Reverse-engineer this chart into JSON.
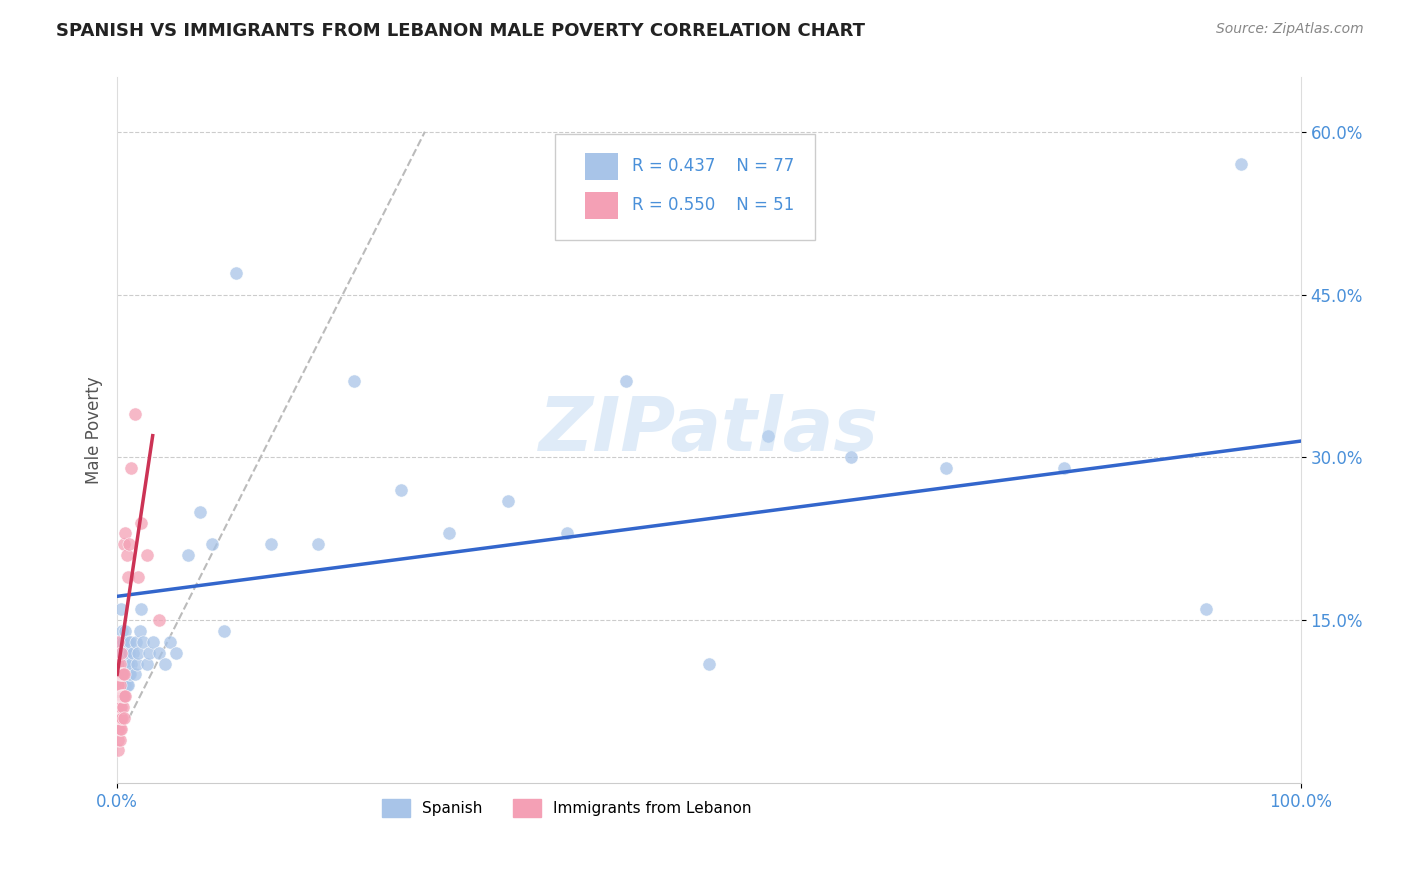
{
  "title": "SPANISH VS IMMIGRANTS FROM LEBANON MALE POVERTY CORRELATION CHART",
  "source": "Source: ZipAtlas.com",
  "ylabel": "Male Poverty",
  "background_color": "#ffffff",
  "watermark": "ZIPatlas",
  "legend_R_spanish": "R = 0.437",
  "legend_N_spanish": "N = 77",
  "legend_R_lebanon": "R = 0.550",
  "legend_N_lebanon": "N = 51",
  "spanish_color": "#a8c4e8",
  "lebanon_color": "#f4a0b5",
  "spanish_line_color": "#3366cc",
  "lebanon_line_color": "#cc3355",
  "dashed_line_color": "#bbbbbb",
  "grid_color": "#cccccc",
  "axis_label_color": "#4a90d9",
  "xlim": [
    0.0,
    1.0
  ],
  "ylim": [
    0.0,
    0.65
  ],
  "ytick_vals": [
    0.15,
    0.3,
    0.45,
    0.6
  ],
  "ytick_labels": [
    "15.0%",
    "30.0%",
    "45.0%",
    "60.0%"
  ],
  "xtick_vals": [
    0.0,
    1.0
  ],
  "xtick_labels": [
    "0.0%",
    "100.0%"
  ],
  "spanish_x": [
    0.001,
    0.001,
    0.001,
    0.002,
    0.002,
    0.002,
    0.002,
    0.003,
    0.003,
    0.003,
    0.003,
    0.003,
    0.003,
    0.004,
    0.004,
    0.004,
    0.004,
    0.004,
    0.005,
    0.005,
    0.005,
    0.005,
    0.005,
    0.006,
    0.006,
    0.006,
    0.006,
    0.007,
    0.007,
    0.007,
    0.007,
    0.008,
    0.008,
    0.008,
    0.009,
    0.009,
    0.009,
    0.01,
    0.01,
    0.011,
    0.011,
    0.012,
    0.013,
    0.015,
    0.016,
    0.017,
    0.018,
    0.019,
    0.02,
    0.022,
    0.025,
    0.027,
    0.03,
    0.035,
    0.04,
    0.045,
    0.05,
    0.06,
    0.07,
    0.08,
    0.09,
    0.1,
    0.13,
    0.17,
    0.2,
    0.24,
    0.28,
    0.33,
    0.38,
    0.43,
    0.5,
    0.55,
    0.62,
    0.7,
    0.8,
    0.92,
    0.95
  ],
  "spanish_y": [
    0.08,
    0.1,
    0.12,
    0.08,
    0.1,
    0.11,
    0.13,
    0.07,
    0.09,
    0.1,
    0.11,
    0.13,
    0.16,
    0.08,
    0.09,
    0.1,
    0.12,
    0.14,
    0.08,
    0.09,
    0.1,
    0.11,
    0.13,
    0.08,
    0.09,
    0.1,
    0.12,
    0.09,
    0.1,
    0.11,
    0.14,
    0.09,
    0.1,
    0.12,
    0.09,
    0.11,
    0.13,
    0.1,
    0.12,
    0.1,
    0.13,
    0.11,
    0.12,
    0.1,
    0.13,
    0.11,
    0.12,
    0.14,
    0.16,
    0.13,
    0.11,
    0.12,
    0.13,
    0.12,
    0.11,
    0.13,
    0.12,
    0.21,
    0.25,
    0.22,
    0.14,
    0.47,
    0.22,
    0.22,
    0.37,
    0.27,
    0.23,
    0.26,
    0.23,
    0.37,
    0.11,
    0.32,
    0.3,
    0.29,
    0.29,
    0.16,
    0.57
  ],
  "lebanon_x": [
    0.001,
    0.001,
    0.001,
    0.001,
    0.001,
    0.001,
    0.001,
    0.001,
    0.001,
    0.001,
    0.001,
    0.001,
    0.001,
    0.001,
    0.001,
    0.001,
    0.002,
    0.002,
    0.002,
    0.002,
    0.002,
    0.002,
    0.002,
    0.002,
    0.003,
    0.003,
    0.003,
    0.003,
    0.003,
    0.003,
    0.004,
    0.004,
    0.004,
    0.005,
    0.005,
    0.005,
    0.006,
    0.006,
    0.006,
    0.006,
    0.007,
    0.007,
    0.008,
    0.009,
    0.01,
    0.012,
    0.015,
    0.018,
    0.02,
    0.025,
    0.035
  ],
  "lebanon_y": [
    0.03,
    0.04,
    0.05,
    0.05,
    0.06,
    0.06,
    0.07,
    0.07,
    0.08,
    0.08,
    0.09,
    0.09,
    0.1,
    0.1,
    0.11,
    0.13,
    0.04,
    0.05,
    0.06,
    0.07,
    0.08,
    0.09,
    0.1,
    0.11,
    0.05,
    0.06,
    0.07,
    0.08,
    0.1,
    0.12,
    0.06,
    0.08,
    0.1,
    0.07,
    0.08,
    0.1,
    0.06,
    0.08,
    0.1,
    0.22,
    0.08,
    0.23,
    0.21,
    0.19,
    0.22,
    0.29,
    0.34,
    0.19,
    0.24,
    0.21,
    0.15
  ],
  "blue_line_x0": 0.0,
  "blue_line_x1": 1.0,
  "blue_line_y0": 0.172,
  "blue_line_y1": 0.315,
  "red_line_x0": 0.0,
  "red_line_x1": 0.03,
  "red_line_y0": 0.1,
  "red_line_y1": 0.32,
  "dashed_line_x0": 0.01,
  "dashed_line_x1": 0.26,
  "dashed_line_y0": 0.06,
  "dashed_line_y1": 0.6
}
